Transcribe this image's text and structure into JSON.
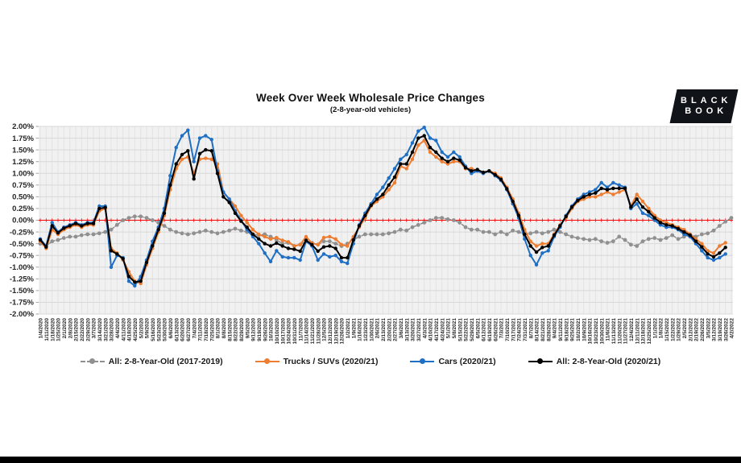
{
  "title": "Week Over Week Wholesale Price Changes",
  "subtitle": "(2-8-year-old vehicles)",
  "logo": {
    "line1": "BLACK",
    "line2": "BOOK"
  },
  "colors": {
    "page_background": "#ffffff",
    "plot_background": "#f1f1f1",
    "vertical_grid": "#e3e3e3",
    "horizontal_grid": "#d8d8d8",
    "zero_line": "#ff0000",
    "axis_text": "#262626",
    "bottom_bar": "#000000"
  },
  "chart_data": {
    "type": "line",
    "title": "Week Over Week Wholesale Price Changes",
    "subtitle": "(2-8-year-old vehicles)",
    "xlabel": "",
    "ylabel": "",
    "ylim": [
      -2.0,
      2.0
    ],
    "ytick_step": 0.25,
    "ytick_format": "percent_2dp",
    "grid": true,
    "legend_position": "bottom",
    "zero_line_color": "#ff0000",
    "categories": [
      "1/4/2020",
      "1/11/2020",
      "1/18/2020",
      "1/25/2020",
      "2/1/2020",
      "2/8/2020",
      "2/15/2020",
      "2/22/2020",
      "2/29/2020",
      "3/7/2020",
      "3/14/2020",
      "3/21/2020",
      "3/28/2020",
      "4/4/2020",
      "4/11/2020",
      "4/18/2020",
      "4/25/2020",
      "5/2/2020",
      "5/9/2020",
      "5/16/2020",
      "5/23/2020",
      "5/30/2020",
      "6/6/2020",
      "6/13/2020",
      "6/20/2020",
      "6/27/2020",
      "7/4/2020",
      "7/11/2020",
      "7/18/2020",
      "7/25/2020",
      "8/1/2020",
      "8/8/2020",
      "8/15/2020",
      "8/22/2020",
      "8/29/2020",
      "9/5/2020",
      "9/12/2020",
      "9/19/2020",
      "9/26/2020",
      "10/3/2020",
      "10/10/2020",
      "10/17/2020",
      "10/24/2020",
      "10/31/2020",
      "11/7/2020",
      "11/14/2020",
      "11/21/2020",
      "11/28/2020",
      "12/5/2020",
      "12/12/2020",
      "12/19/2020",
      "12/26/2020",
      "1/2/2021",
      "1/9/2021",
      "1/16/2021",
      "1/23/2021",
      "1/30/2021",
      "2/6/2021",
      "2/13/2021",
      "2/20/2021",
      "2/27/2021",
      "3/6/2021",
      "3/13/2021",
      "3/20/2021",
      "3/27/2021",
      "4/3/2021",
      "4/10/2021",
      "4/17/2021",
      "4/24/2021",
      "5/1/2021",
      "5/8/2021",
      "5/15/2021",
      "5/22/2021",
      "5/29/2021",
      "6/5/2021",
      "6/12/2021",
      "6/19/2021",
      "6/26/2021",
      "7/3/2021",
      "7/10/2021",
      "7/17/2021",
      "7/24/2021",
      "7/31/2021",
      "8/7/2021",
      "8/14/2021",
      "8/21/2021",
      "8/28/2021",
      "9/4/2021",
      "9/11/2021",
      "9/18/2021",
      "9/25/2021",
      "10/2/2021",
      "10/9/2021",
      "10/16/2021",
      "10/23/2021",
      "10/30/2021",
      "11/6/2021",
      "11/13/2021",
      "11/20/2021",
      "11/27/2021",
      "12/4/2021",
      "12/11/2021",
      "12/18/2021",
      "12/25/2021",
      "1/1/2022",
      "1/8/2022",
      "1/15/2022",
      "1/22/2022",
      "1/29/2022",
      "2/5/2022",
      "2/12/2022",
      "2/19/2022",
      "2/26/2022",
      "3/5/2022",
      "3/12/2022",
      "3/19/2022",
      "3/26/2022",
      "4/2/2022"
    ],
    "series": [
      {
        "name": "All: 2-8-Year-Old (2017-2019)",
        "color": "#909090",
        "style": "dashed",
        "values": [
          -0.5,
          -0.55,
          -0.45,
          -0.42,
          -0.38,
          -0.35,
          -0.35,
          -0.32,
          -0.3,
          -0.3,
          -0.28,
          -0.25,
          -0.2,
          -0.1,
          0.0,
          0.05,
          0.08,
          0.08,
          0.05,
          0.0,
          -0.05,
          -0.12,
          -0.2,
          -0.25,
          -0.28,
          -0.3,
          -0.28,
          -0.25,
          -0.22,
          -0.25,
          -0.28,
          -0.25,
          -0.22,
          -0.18,
          -0.22,
          -0.25,
          -0.3,
          -0.32,
          -0.3,
          -0.35,
          -0.42,
          -0.5,
          -0.48,
          -0.55,
          -0.52,
          -0.45,
          -0.48,
          -0.52,
          -0.45,
          -0.45,
          -0.5,
          -0.55,
          -0.5,
          -0.42,
          -0.35,
          -0.3,
          -0.3,
          -0.3,
          -0.3,
          -0.28,
          -0.25,
          -0.2,
          -0.22,
          -0.15,
          -0.1,
          -0.05,
          0.0,
          0.05,
          0.05,
          0.02,
          0.0,
          -0.05,
          -0.15,
          -0.2,
          -0.2,
          -0.25,
          -0.25,
          -0.3,
          -0.25,
          -0.3,
          -0.22,
          -0.25,
          -0.3,
          -0.28,
          -0.25,
          -0.28,
          -0.25,
          -0.2,
          -0.25,
          -0.3,
          -0.35,
          -0.38,
          -0.4,
          -0.42,
          -0.4,
          -0.45,
          -0.48,
          -0.45,
          -0.35,
          -0.42,
          -0.52,
          -0.55,
          -0.45,
          -0.4,
          -0.38,
          -0.42,
          -0.38,
          -0.32,
          -0.4,
          -0.35,
          -0.3,
          -0.35,
          -0.3,
          -0.28,
          -0.22,
          -0.12,
          -0.03,
          0.05
        ]
      },
      {
        "name": "Trucks / SUVs (2020/21)",
        "color": "#ED7D31",
        "style": "solid",
        "values": [
          -0.45,
          -0.6,
          -0.2,
          -0.3,
          -0.2,
          -0.15,
          -0.1,
          -0.15,
          -0.1,
          -0.1,
          0.2,
          0.25,
          -0.6,
          -0.7,
          -0.85,
          -1.1,
          -1.3,
          -1.35,
          -0.95,
          -0.6,
          -0.25,
          0.1,
          0.65,
          1.1,
          1.3,
          1.35,
          1.0,
          1.3,
          1.32,
          1.3,
          1.2,
          0.6,
          0.45,
          0.3,
          0.1,
          -0.05,
          -0.2,
          -0.3,
          -0.35,
          -0.4,
          -0.37,
          -0.43,
          -0.46,
          -0.55,
          -0.52,
          -0.35,
          -0.49,
          -0.52,
          -0.37,
          -0.35,
          -0.4,
          -0.52,
          -0.55,
          -0.35,
          -0.15,
          0.05,
          0.3,
          0.4,
          0.5,
          0.65,
          0.8,
          1.15,
          1.1,
          1.3,
          1.6,
          1.7,
          1.45,
          1.35,
          1.25,
          1.2,
          1.25,
          1.25,
          1.1,
          1.1,
          1.05,
          1.0,
          1.05,
          1.0,
          0.9,
          0.7,
          0.45,
          0.15,
          -0.2,
          -0.45,
          -0.55,
          -0.5,
          -0.5,
          -0.3,
          -0.1,
          0.05,
          0.25,
          0.4,
          0.45,
          0.5,
          0.5,
          0.55,
          0.6,
          0.55,
          0.6,
          0.65,
          0.3,
          0.55,
          0.4,
          0.25,
          0.1,
          0.0,
          -0.05,
          -0.1,
          -0.15,
          -0.2,
          -0.3,
          -0.4,
          -0.5,
          -0.65,
          -0.7,
          -0.55,
          -0.48,
          null
        ]
      },
      {
        "name": "Cars (2020/21)",
        "color": "#1F6FC5",
        "style": "solid",
        "values": [
          -0.4,
          -0.55,
          -0.05,
          -0.25,
          -0.15,
          -0.1,
          -0.05,
          -0.1,
          -0.05,
          -0.05,
          0.3,
          0.3,
          -1.0,
          -0.75,
          -0.8,
          -1.3,
          -1.4,
          -1.2,
          -0.85,
          -0.45,
          -0.15,
          0.25,
          0.95,
          1.55,
          1.8,
          1.92,
          1.25,
          1.75,
          1.8,
          1.72,
          1.05,
          0.6,
          0.45,
          0.2,
          0.0,
          -0.2,
          -0.35,
          -0.5,
          -0.7,
          -0.88,
          -0.65,
          -0.78,
          -0.8,
          -0.8,
          -0.85,
          -0.45,
          -0.55,
          -0.85,
          -0.72,
          -0.78,
          -0.75,
          -0.88,
          -0.92,
          -0.5,
          -0.1,
          0.15,
          0.35,
          0.55,
          0.7,
          0.9,
          1.1,
          1.3,
          1.4,
          1.65,
          1.9,
          1.98,
          1.75,
          1.7,
          1.45,
          1.35,
          1.45,
          1.35,
          1.15,
          1.0,
          1.05,
          1.0,
          1.05,
          0.95,
          0.85,
          0.65,
          0.35,
          0.05,
          -0.4,
          -0.75,
          -0.95,
          -0.7,
          -0.65,
          -0.35,
          -0.15,
          0.1,
          0.3,
          0.45,
          0.55,
          0.6,
          0.65,
          0.8,
          0.7,
          0.8,
          0.75,
          0.7,
          0.25,
          0.35,
          0.15,
          0.1,
          0.0,
          -0.1,
          -0.15,
          -0.15,
          -0.2,
          -0.3,
          -0.35,
          -0.5,
          -0.65,
          -0.8,
          -0.85,
          -0.8,
          -0.72,
          null
        ]
      },
      {
        "name": "All: 2-8-Year-Old (2020/21)",
        "color": "#000000",
        "style": "solid",
        "values": [
          -0.42,
          -0.57,
          -0.12,
          -0.27,
          -0.17,
          -0.12,
          -0.07,
          -0.12,
          -0.07,
          -0.07,
          0.25,
          0.27,
          -0.65,
          -0.72,
          -0.82,
          -1.2,
          -1.32,
          -1.3,
          -0.9,
          -0.55,
          -0.2,
          0.15,
          0.75,
          1.2,
          1.4,
          1.48,
          0.88,
          1.42,
          1.5,
          1.48,
          1.0,
          0.5,
          0.38,
          0.15,
          -0.02,
          -0.15,
          -0.3,
          -0.4,
          -0.5,
          -0.55,
          -0.49,
          -0.55,
          -0.6,
          -0.62,
          -0.66,
          -0.43,
          -0.52,
          -0.66,
          -0.57,
          -0.55,
          -0.6,
          -0.8,
          -0.8,
          -0.42,
          -0.12,
          0.1,
          0.32,
          0.45,
          0.55,
          0.75,
          0.92,
          1.2,
          1.2,
          1.45,
          1.75,
          1.8,
          1.55,
          1.45,
          1.32,
          1.25,
          1.32,
          1.28,
          1.12,
          1.05,
          1.08,
          1.02,
          1.05,
          0.97,
          0.87,
          0.67,
          0.4,
          0.1,
          -0.3,
          -0.55,
          -0.68,
          -0.58,
          -0.55,
          -0.32,
          -0.12,
          0.08,
          0.28,
          0.42,
          0.5,
          0.55,
          0.58,
          0.68,
          0.65,
          0.68,
          0.68,
          0.68,
          0.28,
          0.45,
          0.28,
          0.18,
          0.05,
          -0.05,
          -0.1,
          -0.12,
          -0.18,
          -0.25,
          -0.32,
          -0.45,
          -0.57,
          -0.72,
          -0.78,
          -0.7,
          -0.58,
          null
        ]
      }
    ]
  }
}
